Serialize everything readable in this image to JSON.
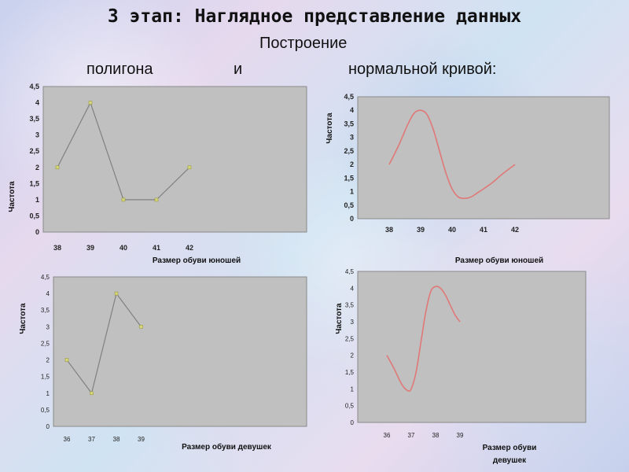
{
  "heading": {
    "title": "3 этап: Наглядное представление данных",
    "subtitle": "Построение",
    "word_polygon": "полигона",
    "word_and": "и",
    "word_curve": "нормальной кривой:"
  },
  "colors": {
    "polygon_line": "#808080",
    "polygon_marker": "#d7d77a",
    "curve_line": "#e07878",
    "plot_background": "#c0c0c0"
  },
  "chart_data": [
    {
      "type": "line",
      "categories": [
        "38",
        "39",
        "40",
        "41",
        "42"
      ],
      "values": [
        2,
        4,
        1,
        1,
        2
      ],
      "xlabel": "Размер обуви юношей",
      "ylabel": "Частота",
      "ylim": [
        0,
        4.5
      ],
      "yticks": [
        "0",
        "0,5",
        "1",
        "1,5",
        "2",
        "2,5",
        "3",
        "3,5",
        "4",
        "4,5"
      ],
      "markers": true,
      "smooth": false,
      "grid": false
    },
    {
      "type": "line",
      "categories": [
        "38",
        "39",
        "40",
        "41",
        "42"
      ],
      "x": [
        38,
        38.3,
        38.6,
        38.8,
        39,
        39.2,
        39.4,
        39.6,
        39.8,
        40,
        40.2,
        40.4,
        40.6,
        40.8,
        41,
        41.3,
        41.6,
        42
      ],
      "values": [
        2,
        2.7,
        3.5,
        3.9,
        4,
        3.85,
        3.3,
        2.5,
        1.7,
        1.1,
        0.8,
        0.75,
        0.8,
        0.95,
        1.1,
        1.35,
        1.65,
        2
      ],
      "xlabel": "Размер обуви юношей",
      "ylabel": "Частота",
      "ylim": [
        0,
        4.5
      ],
      "yticks": [
        "0",
        "0,5",
        "1",
        "1,5",
        "2",
        "2,5",
        "3",
        "3,5",
        "4",
        "4,5"
      ],
      "markers": false,
      "smooth": true,
      "grid": false
    },
    {
      "type": "line",
      "categories": [
        "36",
        "37",
        "38",
        "39"
      ],
      "values": [
        2,
        1,
        4,
        3
      ],
      "xlabel": "Размер обуви девушек",
      "ylabel": "Частота",
      "ylim": [
        0,
        4.5
      ],
      "yticks": [
        "0",
        "0,5",
        "1",
        "1,5",
        "2",
        "2,5",
        "3",
        "3,5",
        "4",
        "4,5"
      ],
      "markers": true,
      "smooth": false,
      "grid": false
    },
    {
      "type": "line",
      "categories": [
        "36",
        "37",
        "38",
        "39"
      ],
      "x": [
        36,
        36.3,
        36.6,
        36.85,
        37,
        37.2,
        37.4,
        37.6,
        37.8,
        38,
        38.2,
        38.4,
        38.6,
        38.8,
        39
      ],
      "values": [
        2,
        1.6,
        1.15,
        0.95,
        1,
        1.5,
        2.4,
        3.3,
        3.9,
        4.05,
        4,
        3.8,
        3.5,
        3.2,
        3
      ],
      "xlabel": "Размер обуви девушек",
      "ylabel": "Частота",
      "ylim": [
        0,
        4.5
      ],
      "yticks": [
        "0",
        "0,5",
        "1",
        "1,5",
        "2",
        "2,5",
        "3",
        "3,5",
        "4",
        "4,5"
      ],
      "markers": false,
      "smooth": true,
      "grid": false
    }
  ]
}
